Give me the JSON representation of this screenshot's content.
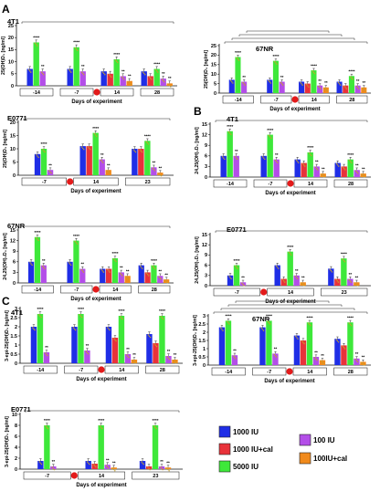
{
  "legend": [
    {
      "label": "1000 IU",
      "color": "#1f2ee6"
    },
    {
      "label": "1000 IU+cal",
      "color": "#e8323a"
    },
    {
      "label": "5000 IU",
      "color": "#3ee83a"
    },
    {
      "label": "100 IU",
      "color": "#b34ee8"
    },
    {
      "label": "100IU+cal",
      "color": "#f08a1c"
    }
  ],
  "panel_letters": [
    "A",
    "B",
    "C"
  ],
  "chart_data": [
    {
      "type": "bar",
      "section": "A",
      "title": "4T1",
      "ylabel": "25(OH)D₃ [ng/ml]",
      "xlabel": "Days of experiment",
      "ylim": [
        0,
        25
      ],
      "yticks": [
        0,
        5,
        10,
        15,
        20,
        25
      ],
      "categories": [
        "-14",
        "-7",
        "14",
        "28"
      ],
      "series": [
        {
          "name": "1000 IU",
          "values": [
            7,
            7,
            6,
            6
          ]
        },
        {
          "name": "1000 IU+cal",
          "values": [
            null,
            null,
            5,
            4
          ]
        },
        {
          "name": "5000 IU",
          "values": [
            18,
            16,
            11,
            7
          ]
        },
        {
          "name": "100 IU",
          "values": [
            6,
            6,
            4,
            3
          ]
        },
        {
          "name": "100IU+cal",
          "values": [
            null,
            null,
            2,
            1
          ]
        }
      ]
    },
    {
      "type": "bar",
      "section": "A",
      "title": "67NR",
      "ylabel": "25(OH)D₃ [ng/ml]",
      "xlabel": "Days of experiment",
      "ylim": [
        0,
        25
      ],
      "yticks": [
        0,
        5,
        10,
        15,
        20,
        25
      ],
      "categories": [
        "-14",
        "-7",
        "14",
        "28"
      ],
      "series": [
        {
          "name": "1000 IU",
          "values": [
            7,
            7,
            6,
            6
          ]
        },
        {
          "name": "1000 IU+cal",
          "values": [
            null,
            null,
            5,
            4
          ]
        },
        {
          "name": "5000 IU",
          "values": [
            19,
            17,
            12,
            9
          ]
        },
        {
          "name": "100 IU",
          "values": [
            6,
            6,
            4,
            4
          ]
        },
        {
          "name": "100IU+cal",
          "values": [
            null,
            null,
            3,
            3
          ]
        }
      ]
    },
    {
      "type": "bar",
      "section": "A",
      "title": "E0771",
      "ylabel": "25(OH)D₃ [ng/ml]",
      "xlabel": "Days of experiment",
      "ylim": [
        0,
        20
      ],
      "yticks": [
        0,
        5,
        10,
        15,
        20
      ],
      "categories": [
        "-7",
        "14",
        "23"
      ],
      "series": [
        {
          "name": "1000 IU",
          "values": [
            8,
            11,
            10
          ]
        },
        {
          "name": "1000 IU+cal",
          "values": [
            null,
            11,
            10
          ]
        },
        {
          "name": "5000 IU",
          "values": [
            10,
            16,
            13
          ]
        },
        {
          "name": "100 IU",
          "values": [
            2,
            6,
            3
          ]
        },
        {
          "name": "100IU+cal",
          "values": [
            null,
            2,
            1
          ]
        }
      ]
    },
    {
      "type": "bar",
      "section": "A",
      "title": "67NR",
      "ylabel": "24,25(OH)₂D₃ [ng/ml]",
      "xlabel": "Days of experiment",
      "ylim": [
        0,
        15
      ],
      "yticks": [
        0,
        3,
        6,
        9,
        12,
        15
      ],
      "categories": [
        "-14",
        "-7",
        "14",
        "28"
      ],
      "series": [
        {
          "name": "1000 IU",
          "values": [
            6,
            6,
            4,
            5
          ]
        },
        {
          "name": "1000 IU+cal",
          "values": [
            null,
            null,
            4,
            3
          ]
        },
        {
          "name": "5000 IU",
          "values": [
            13,
            12,
            7,
            5
          ]
        },
        {
          "name": "100 IU",
          "values": [
            5,
            4,
            3,
            2
          ]
        },
        {
          "name": "100IU+cal",
          "values": [
            null,
            null,
            2,
            1
          ]
        }
      ]
    },
    {
      "type": "bar",
      "section": "B",
      "title": "4T1",
      "ylabel": "24,25(OH)₂D₃ [ng/ml]",
      "xlabel": "Days of experiment",
      "ylim": [
        0,
        15
      ],
      "yticks": [
        0,
        3,
        6,
        9,
        12,
        15
      ],
      "categories": [
        "-14",
        "-7",
        "14",
        "28"
      ],
      "series": [
        {
          "name": "1000 IU",
          "values": [
            6,
            6,
            5,
            4
          ]
        },
        {
          "name": "1000 IU+cal",
          "values": [
            null,
            null,
            4,
            3
          ]
        },
        {
          "name": "5000 IU",
          "values": [
            13,
            12,
            7,
            5
          ]
        },
        {
          "name": "100 IU",
          "values": [
            6,
            5,
            3,
            2
          ]
        },
        {
          "name": "100IU+cal",
          "values": [
            null,
            null,
            1,
            1
          ]
        }
      ]
    },
    {
      "type": "bar",
      "section": "B",
      "title": "E0771",
      "ylabel": "24,25(OH)₂D₃ [ng/ml]",
      "xlabel": "Days of experiment",
      "ylim": [
        0,
        15
      ],
      "yticks": [
        0,
        3,
        6,
        9,
        12,
        15
      ],
      "categories": [
        "-7",
        "14",
        "23"
      ],
      "series": [
        {
          "name": "1000 IU",
          "values": [
            3,
            6,
            5
          ]
        },
        {
          "name": "1000 IU+cal",
          "values": [
            null,
            2,
            2
          ]
        },
        {
          "name": "5000 IU",
          "values": [
            6,
            10,
            8
          ]
        },
        {
          "name": "100 IU",
          "values": [
            1,
            3,
            2
          ]
        },
        {
          "name": "100IU+cal",
          "values": [
            null,
            1,
            1
          ]
        }
      ]
    },
    {
      "type": "bar",
      "section": "C",
      "title": "4T1",
      "ylabel": "3-epi-25(OH)D₃ [ng/ml]",
      "xlabel": "Days of experiment",
      "ylim": [
        0,
        3
      ],
      "yticks": [
        0.0,
        0.5,
        1.0,
        1.5,
        2.0,
        2.5,
        3.0
      ],
      "categories": [
        "-14",
        "-7",
        "14",
        "28"
      ],
      "series": [
        {
          "name": "1000 IU",
          "values": [
            2.0,
            2.0,
            2.0,
            1.6
          ]
        },
        {
          "name": "1000 IU+cal",
          "values": [
            null,
            null,
            1.4,
            1.1
          ]
        },
        {
          "name": "5000 IU",
          "values": [
            2.7,
            2.7,
            2.6,
            2.6
          ]
        },
        {
          "name": "100 IU",
          "values": [
            0.6,
            0.7,
            0.5,
            0.4
          ]
        },
        {
          "name": "100IU+cal",
          "values": [
            null,
            null,
            0.2,
            0.2
          ]
        }
      ]
    },
    {
      "type": "bar",
      "section": "C",
      "title": "67NR",
      "ylabel": "3-epi-25(OH)D₃ [ng/ml]",
      "xlabel": "Days of experiment",
      "ylim": [
        0,
        3
      ],
      "yticks": [
        0.0,
        0.5,
        1.0,
        1.5,
        2.0,
        2.5,
        3.0
      ],
      "categories": [
        "-14",
        "-7",
        "14",
        "28"
      ],
      "series": [
        {
          "name": "1000 IU",
          "values": [
            2.3,
            2.3,
            1.8,
            1.6
          ]
        },
        {
          "name": "1000 IU+cal",
          "values": [
            null,
            null,
            1.5,
            1.2
          ]
        },
        {
          "name": "5000 IU",
          "values": [
            2.7,
            2.7,
            2.6,
            2.6
          ]
        },
        {
          "name": "100 IU",
          "values": [
            0.6,
            0.7,
            0.5,
            0.4
          ]
        },
        {
          "name": "100IU+cal",
          "values": [
            null,
            null,
            0.3,
            0.2
          ]
        }
      ]
    },
    {
      "type": "bar",
      "section": "C",
      "title": "E0771",
      "ylabel": "3-epi-25(OH)D₃ [ng/ml]",
      "xlabel": "Days of experiment",
      "ylim": [
        0,
        10
      ],
      "yticks": [
        0,
        2,
        4,
        6,
        8,
        10
      ],
      "categories": [
        "-7",
        "14",
        "23"
      ],
      "series": [
        {
          "name": "1000 IU",
          "values": [
            1.5,
            1.5,
            1.5
          ]
        },
        {
          "name": "1000 IU+cal",
          "values": [
            null,
            1.0,
            0.5
          ]
        },
        {
          "name": "5000 IU",
          "values": [
            8,
            8,
            8
          ]
        },
        {
          "name": "100 IU",
          "values": [
            0.5,
            0.8,
            0.5
          ]
        },
        {
          "name": "100IU+cal",
          "values": [
            null,
            0.3,
            0.3
          ]
        }
      ]
    }
  ]
}
